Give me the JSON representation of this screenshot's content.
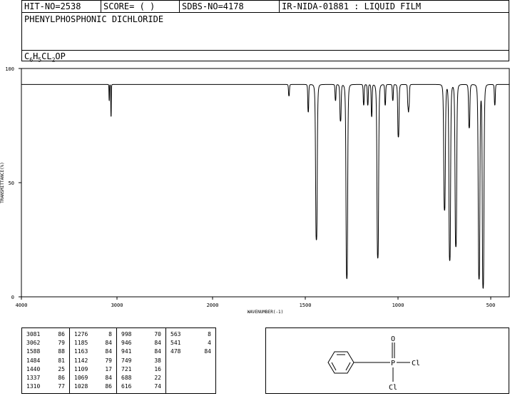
{
  "header": {
    "hit_no": "HIT-NO=2538",
    "score": "SCORE=  (  )",
    "sdbs_no": "SDBS-NO=4178",
    "ir_info": "IR-NIDA-01881 : LIQUID FILM",
    "compound_name": "PHENYLPHOSPHONIC DICHLORIDE",
    "formula": {
      "c": "C",
      "c_n": "6",
      "h": "H",
      "h_n": "5",
      "cl": "CL",
      "cl_n": "2",
      "rest": "OP"
    }
  },
  "chart_data": {
    "type": "line",
    "xlabel": "WAVENUMBER(-1)",
    "ylabel": "TRANSMITTANCE(%)",
    "xlim": [
      4000,
      400
    ],
    "ylim": [
      0,
      100
    ],
    "x_ticks": [
      4000,
      3000,
      2000,
      1500,
      1000,
      500
    ],
    "y_ticks": [
      0,
      50,
      100
    ],
    "x_tick_labels": [
      "4000",
      "3000",
      "2000",
      "1500",
      "1000",
      "500"
    ],
    "y_tick_labels": [
      "0",
      "50",
      "100"
    ],
    "baseline": 93,
    "series": [
      {
        "peaks": [
          {
            "x": 3081,
            "y": 86
          },
          {
            "x": 3062,
            "y": 79
          },
          {
            "x": 1588,
            "y": 88
          },
          {
            "x": 1484,
            "y": 81
          },
          {
            "x": 1440,
            "y": 25
          },
          {
            "x": 1337,
            "y": 86
          },
          {
            "x": 1310,
            "y": 77
          },
          {
            "x": 1276,
            "y": 8
          },
          {
            "x": 1185,
            "y": 84
          },
          {
            "x": 1163,
            "y": 84
          },
          {
            "x": 1142,
            "y": 79
          },
          {
            "x": 1109,
            "y": 17
          },
          {
            "x": 1069,
            "y": 84
          },
          {
            "x": 1028,
            "y": 86
          },
          {
            "x": 998,
            "y": 70
          },
          {
            "x": 946,
            "y": 84
          },
          {
            "x": 941,
            "y": 84
          },
          {
            "x": 749,
            "y": 38
          },
          {
            "x": 721,
            "y": 16
          },
          {
            "x": 688,
            "y": 22
          },
          {
            "x": 616,
            "y": 74
          },
          {
            "x": 563,
            "y": 8
          },
          {
            "x": 541,
            "y": 4
          },
          {
            "x": 478,
            "y": 84
          }
        ]
      }
    ]
  },
  "peak_table": [
    [
      [
        "3081",
        "86"
      ],
      [
        "3062",
        "79"
      ],
      [
        "1588",
        "88"
      ],
      [
        "1484",
        "81"
      ],
      [
        "1440",
        "25"
      ],
      [
        "1337",
        "86"
      ],
      [
        "1310",
        "77"
      ]
    ],
    [
      [
        "1276",
        "8"
      ],
      [
        "1185",
        "84"
      ],
      [
        "1163",
        "84"
      ],
      [
        "1142",
        "79"
      ],
      [
        "1109",
        "17"
      ],
      [
        "1069",
        "84"
      ],
      [
        "1028",
        "86"
      ]
    ],
    [
      [
        "998",
        "70"
      ],
      [
        "946",
        "84"
      ],
      [
        "941",
        "84"
      ],
      [
        "749",
        "38"
      ],
      [
        "721",
        "16"
      ],
      [
        "688",
        "22"
      ],
      [
        "616",
        "74"
      ]
    ],
    [
      [
        "563",
        "8"
      ],
      [
        "541",
        "4"
      ],
      [
        "478",
        "84"
      ]
    ]
  ],
  "structure": {
    "o": "O",
    "p": "P",
    "cl1": "Cl",
    "cl2": "Cl"
  }
}
